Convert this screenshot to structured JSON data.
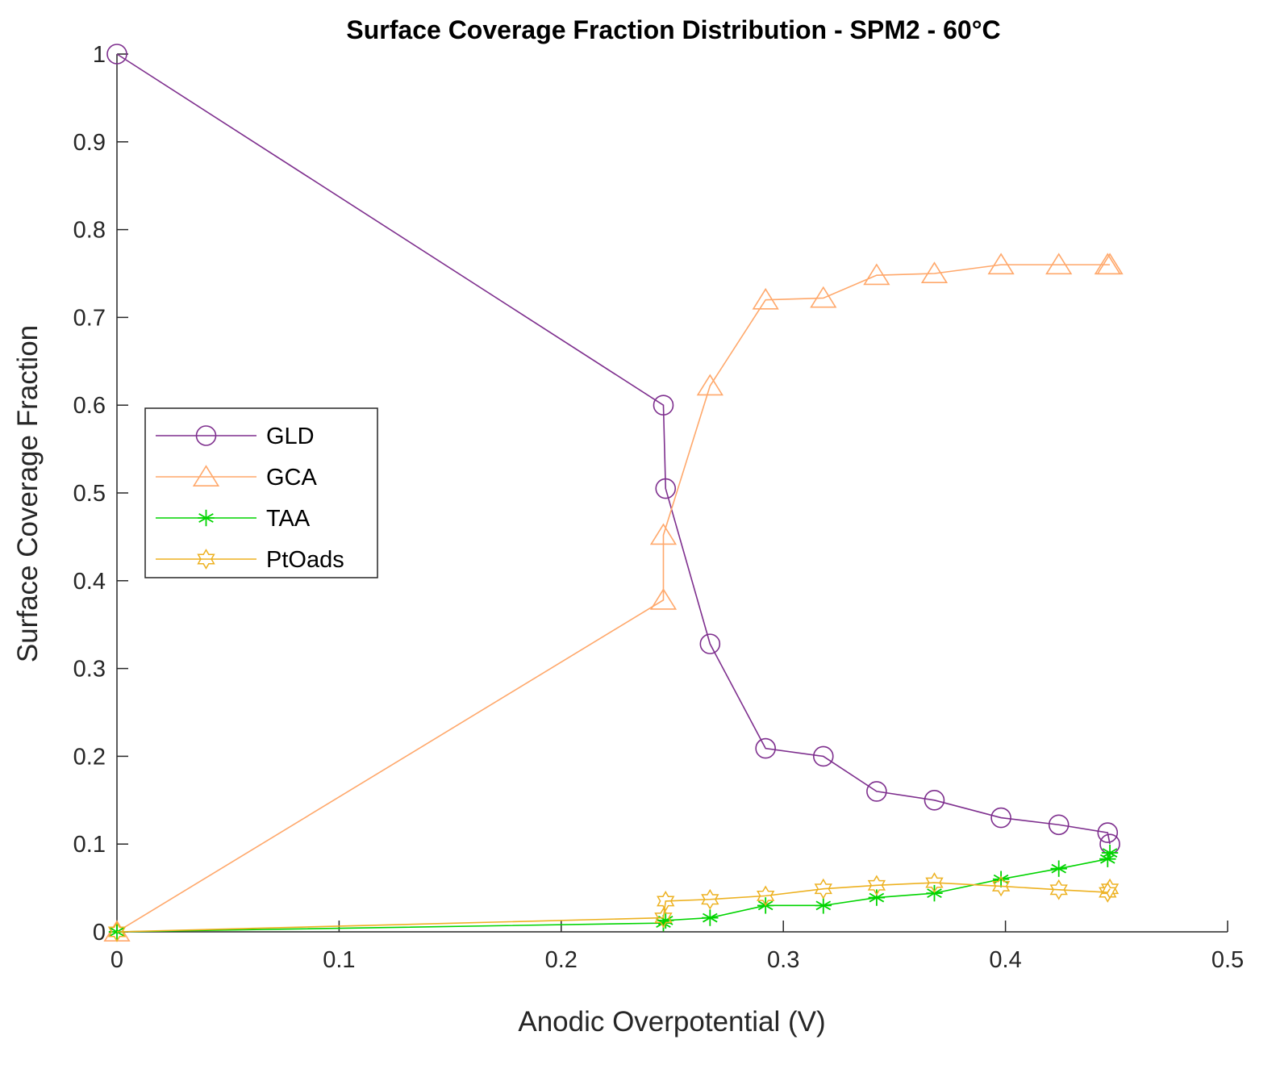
{
  "chart_data": {
    "type": "line",
    "title": "Surface Coverage Fraction Distribution - SPM2 - 60°C",
    "xlabel": "Anodic Overpotential (V)",
    "ylabel": "Surface Coverage Fraction",
    "xlim": [
      0,
      0.5
    ],
    "ylim": [
      0,
      1
    ],
    "xticks": [
      0,
      0.1,
      0.2,
      0.3,
      0.4,
      0.5
    ],
    "xtick_labels": [
      "0",
      "0.1",
      "0.2",
      "0.3",
      "0.4",
      "0.5"
    ],
    "yticks": [
      0,
      0.1,
      0.2,
      0.3,
      0.4,
      0.5,
      0.6,
      0.7,
      0.8,
      0.9,
      1
    ],
    "ytick_labels": [
      "0",
      "0.1",
      "0.2",
      "0.3",
      "0.4",
      "0.5",
      "0.6",
      "0.7",
      "0.8",
      "0.9",
      "1"
    ],
    "grid": false,
    "legend_position": "middle-left",
    "series": [
      {
        "name": "GLD",
        "color": "#7E2F8E",
        "marker": "circle",
        "x": [
          0,
          0.246,
          0.247,
          0.267,
          0.292,
          0.318,
          0.342,
          0.368,
          0.398,
          0.424,
          0.446,
          0.447
        ],
        "y": [
          1.0,
          0.6,
          0.505,
          0.328,
          0.209,
          0.2,
          0.16,
          0.15,
          0.13,
          0.122,
          0.113,
          0.1
        ]
      },
      {
        "name": "GCA",
        "color": "#FFA86B",
        "marker": "triangle",
        "x": [
          0,
          0.246,
          0.246,
          0.267,
          0.292,
          0.318,
          0.342,
          0.368,
          0.398,
          0.424,
          0.446,
          0.447
        ],
        "y": [
          0,
          0.378,
          0.452,
          0.622,
          0.72,
          0.722,
          0.748,
          0.75,
          0.76,
          0.76,
          0.76,
          0.76
        ]
      },
      {
        "name": "TAA",
        "color": "#00D400",
        "marker": "asterisk",
        "x": [
          0,
          0.246,
          0.247,
          0.267,
          0.292,
          0.318,
          0.342,
          0.368,
          0.398,
          0.424,
          0.446,
          0.447
        ],
        "y": [
          0,
          0.01,
          0.013,
          0.016,
          0.03,
          0.03,
          0.039,
          0.044,
          0.06,
          0.072,
          0.083,
          0.09
        ]
      },
      {
        "name": "PtOads",
        "color": "#EDB120",
        "marker": "hexagram",
        "x": [
          0,
          0.246,
          0.247,
          0.267,
          0.292,
          0.318,
          0.342,
          0.368,
          0.398,
          0.424,
          0.446,
          0.447
        ],
        "y": [
          0,
          0.016,
          0.035,
          0.037,
          0.041,
          0.049,
          0.053,
          0.056,
          0.052,
          0.048,
          0.045,
          0.049
        ]
      }
    ]
  }
}
